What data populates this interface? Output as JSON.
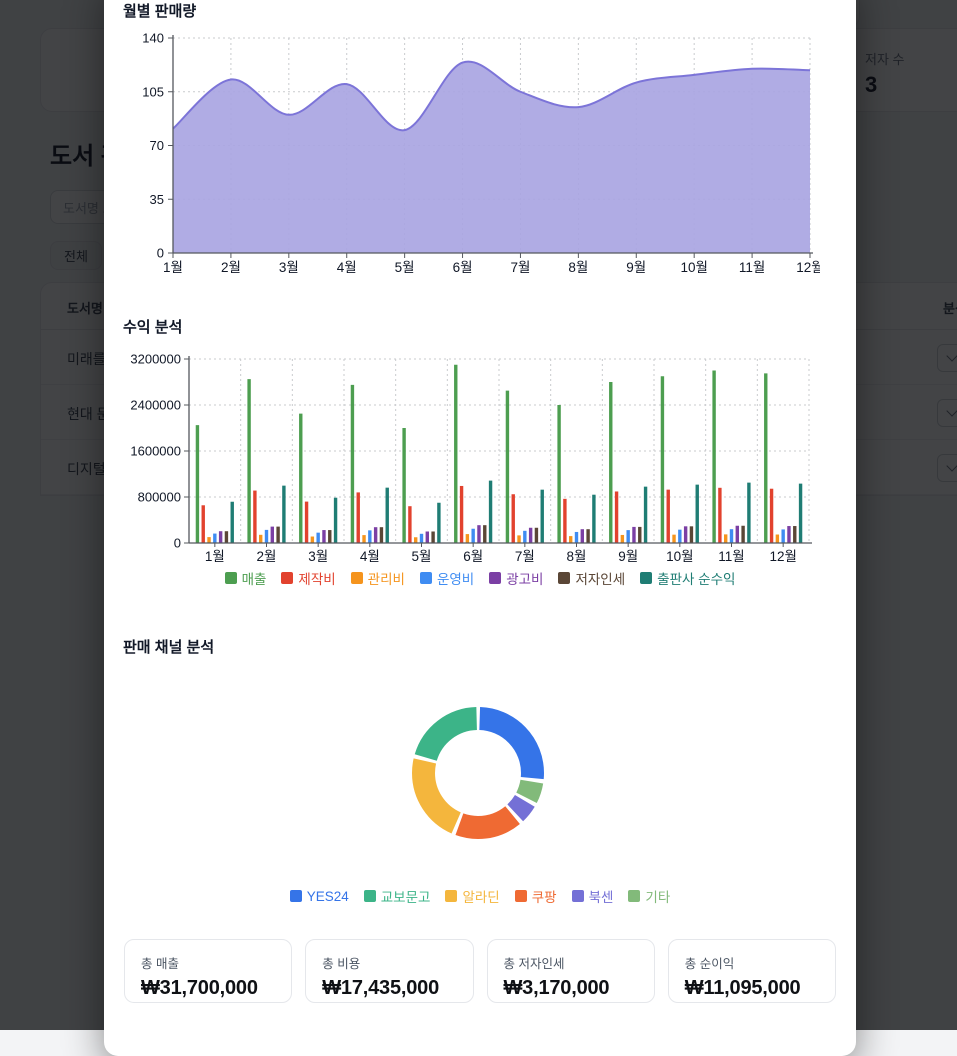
{
  "background": {
    "page_title": "도서 관",
    "search_placeholder": "도서명 또",
    "filter_chip": "전체",
    "author_stat": {
      "label": "저자 수",
      "value": "3"
    },
    "table": {
      "col_book": "도서명",
      "col_analysis": "분석",
      "rows": [
        "미래를",
        "현대 문",
        "디지털"
      ]
    }
  },
  "modal": {
    "sales_title": "월별 판매량",
    "revenue_title": "수익 분석",
    "channel_title": "판매 채널 분석",
    "summary_cards": [
      {
        "label": "총 매출",
        "value": "₩31,700,000"
      },
      {
        "label": "총 비용",
        "value": "₩17,435,000"
      },
      {
        "label": "총 저자인세",
        "value": "₩3,170,000"
      },
      {
        "label": "총 순이익",
        "value": "₩11,095,000"
      }
    ]
  },
  "chart_data": [
    {
      "type": "area",
      "title": "월별 판매량",
      "x": [
        "1월",
        "2월",
        "3월",
        "4월",
        "5월",
        "6월",
        "7월",
        "8월",
        "9월",
        "10월",
        "11월",
        "12월"
      ],
      "values": [
        81,
        113,
        90,
        110,
        80,
        124,
        105,
        95,
        111,
        116,
        120,
        119
      ],
      "ylim": [
        0,
        140
      ],
      "yticks": [
        0,
        35,
        70,
        105,
        140
      ],
      "grid": "dashed",
      "fill_color": "#a9a5e2",
      "line_color": "#7c74d8"
    },
    {
      "type": "bar",
      "title": "수익 분석",
      "categories": [
        "1월",
        "2월",
        "3월",
        "4월",
        "5월",
        "6월",
        "7월",
        "8월",
        "9월",
        "10월",
        "11월",
        "12월"
      ],
      "ylim": [
        0,
        3200000
      ],
      "yticks": [
        0,
        800000,
        1600000,
        2400000,
        3200000
      ],
      "legend_position": "bottom",
      "series": [
        {
          "name": "매출",
          "color": "#4d9e50",
          "values": [
            2050000,
            2850000,
            2250000,
            2750000,
            2000000,
            3100000,
            2650000,
            2400000,
            2800000,
            2900000,
            3000000,
            2950000
          ]
        },
        {
          "name": "제작비",
          "color": "#e2422e",
          "values": [
            656000,
            912000,
            720000,
            880000,
            640000,
            992000,
            848000,
            768000,
            896000,
            928000,
            960000,
            944000
          ]
        },
        {
          "name": "관리비",
          "color": "#f5941d",
          "values": [
            102500,
            142500,
            112500,
            137500,
            100000,
            155000,
            132500,
            120000,
            140000,
            145000,
            150000,
            147500
          ]
        },
        {
          "name": "운영비",
          "color": "#3f8cf2",
          "values": [
            164000,
            228000,
            180000,
            220000,
            160000,
            248000,
            212000,
            192000,
            224000,
            232000,
            240000,
            236000
          ]
        },
        {
          "name": "광고비",
          "color": "#7b3fa4",
          "values": [
            205000,
            285000,
            225000,
            275000,
            200000,
            310000,
            265000,
            240000,
            280000,
            290000,
            300000,
            295000
          ]
        },
        {
          "name": "저자인세",
          "color": "#5a4636",
          "values": [
            205000,
            285000,
            225000,
            275000,
            200000,
            310000,
            265000,
            240000,
            280000,
            290000,
            300000,
            295000
          ]
        },
        {
          "name": "출판사 순수익",
          "color": "#1f7d74",
          "values": [
            717500,
            997500,
            787500,
            962500,
            700000,
            1085000,
            927500,
            840000,
            980000,
            1015000,
            1050000,
            1032500
          ]
        }
      ]
    },
    {
      "type": "donut",
      "title": "판매 채널 분석",
      "labels": [
        "YES24",
        "교보문고",
        "알라딘",
        "쿠팡",
        "북센",
        "기타"
      ],
      "values": [
        27,
        21,
        23,
        17.5,
        5.5,
        6
      ],
      "colors": [
        "#3574e8",
        "#3cb488",
        "#f4b63d",
        "#ef6a33",
        "#7470d6",
        "#82ba7a"
      ],
      "clockwise_draw_order": [
        0,
        5,
        4,
        3,
        2,
        1
      ],
      "legend_position": "bottom"
    }
  ]
}
